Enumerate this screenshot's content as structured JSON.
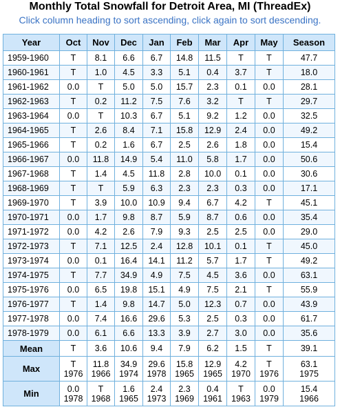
{
  "page": {
    "title": "Monthly Total Snowfall for Detroit Area, MI (ThreadEx)",
    "instructions": "Click column heading to sort ascending, click again to sort descending."
  },
  "table": {
    "headers": [
      "Year",
      "Oct",
      "Nov",
      "Dec",
      "Jan",
      "Feb",
      "Mar",
      "Apr",
      "May",
      "Season"
    ],
    "rows": [
      [
        "1959-1960",
        "T",
        "8.1",
        "6.6",
        "6.7",
        "14.8",
        "11.5",
        "T",
        "T",
        "47.7"
      ],
      [
        "1960-1961",
        "T",
        "1.0",
        "4.5",
        "3.3",
        "5.1",
        "0.4",
        "3.7",
        "T",
        "18.0"
      ],
      [
        "1961-1962",
        "0.0",
        "T",
        "5.0",
        "5.0",
        "15.7",
        "2.3",
        "0.1",
        "0.0",
        "28.1"
      ],
      [
        "1962-1963",
        "T",
        "0.2",
        "11.2",
        "7.5",
        "7.6",
        "3.2",
        "T",
        "T",
        "29.7"
      ],
      [
        "1963-1964",
        "0.0",
        "T",
        "10.3",
        "6.7",
        "5.1",
        "9.2",
        "1.2",
        "0.0",
        "32.5"
      ],
      [
        "1964-1965",
        "T",
        "2.6",
        "8.4",
        "7.1",
        "15.8",
        "12.9",
        "2.4",
        "0.0",
        "49.2"
      ],
      [
        "1965-1966",
        "T",
        "0.2",
        "1.6",
        "6.7",
        "2.5",
        "2.6",
        "1.8",
        "0.0",
        "15.4"
      ],
      [
        "1966-1967",
        "0.0",
        "11.8",
        "14.9",
        "5.4",
        "11.0",
        "5.8",
        "1.7",
        "0.0",
        "50.6"
      ],
      [
        "1967-1968",
        "T",
        "1.4",
        "4.5",
        "11.8",
        "2.8",
        "10.0",
        "0.1",
        "0.0",
        "30.6"
      ],
      [
        "1968-1969",
        "T",
        "T",
        "5.9",
        "6.3",
        "2.3",
        "2.3",
        "0.3",
        "0.0",
        "17.1"
      ],
      [
        "1969-1970",
        "T",
        "3.9",
        "10.0",
        "10.9",
        "9.4",
        "6.7",
        "4.2",
        "T",
        "45.1"
      ],
      [
        "1970-1971",
        "0.0",
        "1.7",
        "9.8",
        "8.7",
        "5.9",
        "8.7",
        "0.6",
        "0.0",
        "35.4"
      ],
      [
        "1971-1972",
        "0.0",
        "4.2",
        "2.6",
        "7.9",
        "9.3",
        "2.5",
        "2.5",
        "0.0",
        "29.0"
      ],
      [
        "1972-1973",
        "T",
        "7.1",
        "12.5",
        "2.4",
        "12.8",
        "10.1",
        "0.1",
        "T",
        "45.0"
      ],
      [
        "1973-1974",
        "0.0",
        "0.1",
        "16.4",
        "14.1",
        "11.2",
        "5.7",
        "1.7",
        "T",
        "49.2"
      ],
      [
        "1974-1975",
        "T",
        "7.7",
        "34.9",
        "4.9",
        "7.5",
        "4.5",
        "3.6",
        "0.0",
        "63.1"
      ],
      [
        "1975-1976",
        "0.0",
        "6.5",
        "19.8",
        "15.1",
        "4.9",
        "7.5",
        "2.1",
        "T",
        "55.9"
      ],
      [
        "1976-1977",
        "T",
        "1.4",
        "9.8",
        "14.7",
        "5.0",
        "12.3",
        "0.7",
        "0.0",
        "43.9"
      ],
      [
        "1977-1978",
        "0.0",
        "7.4",
        "16.6",
        "29.6",
        "5.3",
        "2.5",
        "0.3",
        "0.0",
        "61.7"
      ],
      [
        "1978-1979",
        "0.0",
        "6.1",
        "6.6",
        "13.3",
        "3.9",
        "2.7",
        "3.0",
        "0.0",
        "35.6"
      ]
    ],
    "summary": {
      "mean": {
        "label": "Mean",
        "values": [
          "T",
          "3.6",
          "10.6",
          "9.4",
          "7.9",
          "6.2",
          "1.5",
          "T",
          "39.1"
        ]
      },
      "max": {
        "label": "Max",
        "values": [
          "T",
          "11.8",
          "34.9",
          "29.6",
          "15.8",
          "12.9",
          "4.2",
          "T",
          "63.1"
        ],
        "years": [
          "1976",
          "1966",
          "1974",
          "1978",
          "1965",
          "1965",
          "1970",
          "1976",
          "1975"
        ]
      },
      "min": {
        "label": "Min",
        "values": [
          "0.0",
          "T",
          "1.6",
          "2.4",
          "2.3",
          "0.4",
          "T",
          "0.0",
          "15.4"
        ],
        "years": [
          "1978",
          "1968",
          "1965",
          "1973",
          "1969",
          "1961",
          "1963",
          "1979",
          "1966"
        ]
      }
    }
  }
}
